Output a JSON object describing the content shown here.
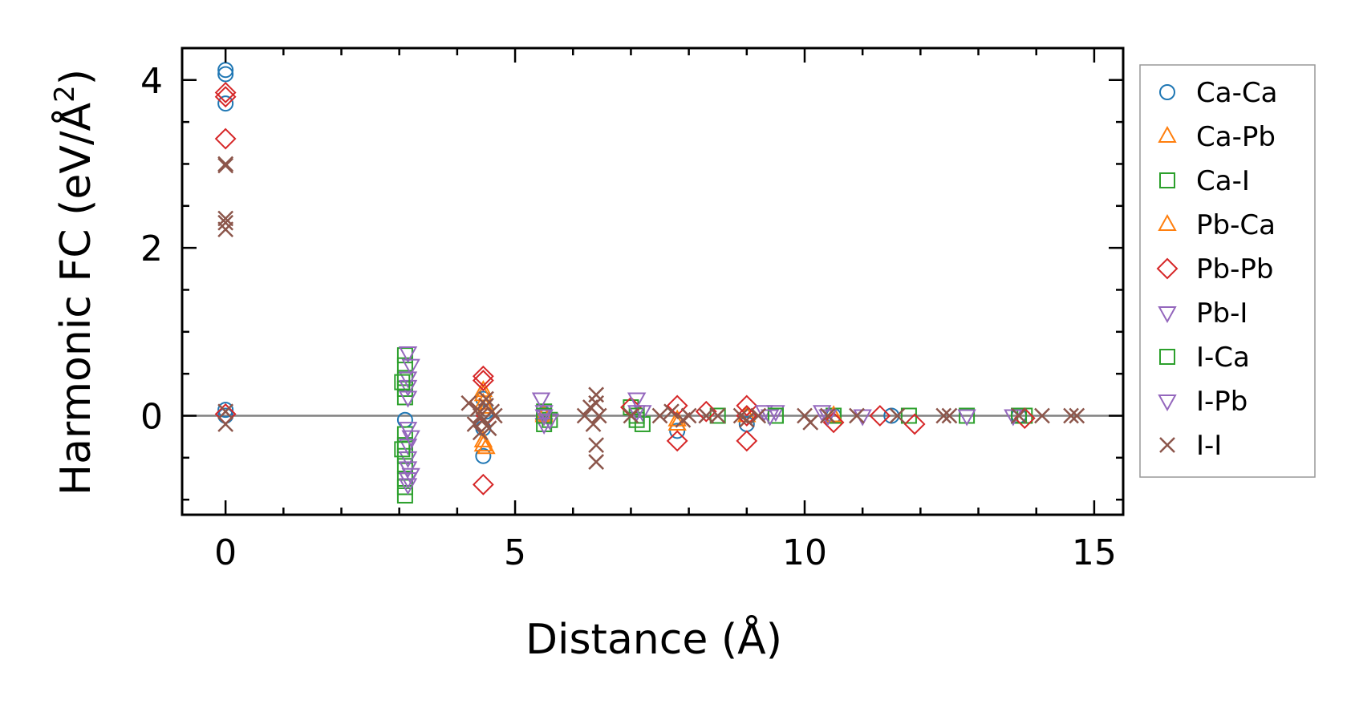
{
  "chart_data": {
    "type": "scatter",
    "xlabel": "Distance (Å)",
    "ylabel_main": "Harmonic FC (eV/Å",
    "ylabel_sup": "2",
    "ylabel_close": ")",
    "xlim": [
      -0.75,
      15.5
    ],
    "ylim": [
      -1.18,
      4.38
    ],
    "x_ticks": [
      0,
      5,
      10,
      15
    ],
    "y_ticks": [
      0,
      2,
      4
    ],
    "grid": false,
    "zero_line": true,
    "legend_position": "outside-right",
    "series": [
      {
        "name": "Ca-Ca",
        "marker": "circle",
        "color": "#1f77b4",
        "points": [
          [
            0,
            4.12
          ],
          [
            0,
            4.07
          ],
          [
            0,
            3.72
          ],
          [
            0,
            0.07
          ],
          [
            0,
            0.0
          ],
          [
            3.1,
            -0.05
          ],
          [
            4.45,
            0.2
          ],
          [
            4.45,
            -0.15
          ],
          [
            4.45,
            -0.48
          ],
          [
            4.5,
            0.05
          ],
          [
            5.5,
            0.02
          ],
          [
            7.8,
            -0.18
          ],
          [
            9.0,
            -0.1
          ],
          [
            10.5,
            0.0
          ],
          [
            11.5,
            0.0
          ],
          [
            13.7,
            0.0
          ]
        ]
      },
      {
        "name": "Ca-Pb",
        "marker": "triangle-up",
        "color": "#ff7f0e",
        "points": [
          [
            4.45,
            0.3
          ],
          [
            4.45,
            0.15
          ],
          [
            4.45,
            -0.3
          ],
          [
            4.5,
            -0.38
          ],
          [
            5.5,
            0.02
          ],
          [
            7.8,
            -0.1
          ],
          [
            9.0,
            0.0
          ],
          [
            10.5,
            0.0
          ]
        ]
      },
      {
        "name": "Ca-I",
        "marker": "square",
        "color": "#2ca02c",
        "points": [
          [
            3.1,
            0.72
          ],
          [
            3.1,
            0.6
          ],
          [
            3.1,
            0.45
          ],
          [
            3.1,
            0.32
          ],
          [
            3.1,
            0.22
          ],
          [
            3.1,
            -0.22
          ],
          [
            3.1,
            -0.35
          ],
          [
            3.1,
            -0.48
          ],
          [
            3.1,
            -0.6
          ],
          [
            3.1,
            -0.75
          ],
          [
            3.1,
            -0.85
          ],
          [
            3.1,
            -0.95
          ],
          [
            5.5,
            0.05
          ],
          [
            5.6,
            -0.05
          ],
          [
            5.5,
            -0.1
          ],
          [
            7.0,
            0.1
          ],
          [
            7.1,
            -0.05
          ],
          [
            7.2,
            -0.1
          ],
          [
            8.5,
            0.0
          ],
          [
            9.5,
            0.0
          ],
          [
            10.5,
            0.0
          ],
          [
            11.8,
            0.0
          ],
          [
            12.8,
            0.0
          ],
          [
            13.7,
            0.0
          ],
          [
            13.8,
            0.0
          ]
        ]
      },
      {
        "name": "Pb-Ca",
        "marker": "triangle-up",
        "color": "#ff7f0e",
        "points": [
          [
            4.45,
            0.25
          ],
          [
            4.45,
            -0.35
          ],
          [
            4.5,
            0.1
          ],
          [
            5.5,
            0.0
          ],
          [
            7.8,
            -0.05
          ],
          [
            9.0,
            0.0
          ],
          [
            10.5,
            0.0
          ]
        ]
      },
      {
        "name": "Pb-Pb",
        "marker": "diamond",
        "color": "#d62728",
        "points": [
          [
            0,
            3.85
          ],
          [
            0,
            3.8
          ],
          [
            0,
            3.3
          ],
          [
            0,
            0.02
          ],
          [
            4.45,
            0.47
          ],
          [
            4.45,
            0.42
          ],
          [
            4.45,
            -0.82
          ],
          [
            4.5,
            0.0
          ],
          [
            7.0,
            0.1
          ],
          [
            7.8,
            0.12
          ],
          [
            7.8,
            -0.3
          ],
          [
            8.3,
            0.05
          ],
          [
            9.0,
            0.12
          ],
          [
            9.0,
            -0.3
          ],
          [
            9.0,
            0.0
          ],
          [
            10.5,
            -0.08
          ],
          [
            11.3,
            0.0
          ],
          [
            11.9,
            -0.1
          ],
          [
            13.8,
            -0.03
          ]
        ]
      },
      {
        "name": "Pb-I",
        "marker": "triangle-down",
        "color": "#9467bd",
        "points": [
          [
            3.15,
            0.75
          ],
          [
            3.15,
            0.45
          ],
          [
            3.15,
            0.35
          ],
          [
            3.15,
            0.22
          ],
          [
            3.15,
            -0.15
          ],
          [
            3.15,
            -0.35
          ],
          [
            3.15,
            -0.5
          ],
          [
            3.15,
            -0.62
          ],
          [
            3.15,
            -0.75
          ],
          [
            3.15,
            -0.82
          ],
          [
            5.45,
            0.2
          ],
          [
            5.5,
            0.05
          ],
          [
            5.6,
            -0.05
          ],
          [
            5.5,
            -0.1
          ],
          [
            7.1,
            0.2
          ],
          [
            7.2,
            0.05
          ],
          [
            9.3,
            0.05
          ],
          [
            9.5,
            0.05
          ],
          [
            10.3,
            0.05
          ],
          [
            11.0,
            0.0
          ],
          [
            12.8,
            0.0
          ],
          [
            13.6,
            0.0
          ]
        ]
      },
      {
        "name": "I-Ca",
        "marker": "square",
        "color": "#2ca02c",
        "points": [
          [
            3.05,
            0.4
          ],
          [
            3.05,
            -0.4
          ],
          [
            5.5,
            0.0
          ],
          [
            7.1,
            0.0
          ],
          [
            9.5,
            0.0
          ]
        ]
      },
      {
        "name": "I-Pb",
        "marker": "triangle-down",
        "color": "#9467bd",
        "points": [
          [
            3.2,
            0.6
          ],
          [
            3.2,
            -0.25
          ],
          [
            3.2,
            -0.7
          ],
          [
            5.5,
            0.0
          ],
          [
            7.1,
            0.05
          ],
          [
            9.4,
            0.0
          ],
          [
            10.4,
            0.0
          ]
        ]
      },
      {
        "name": "I-I",
        "marker": "x",
        "color": "#8c564b",
        "points": [
          [
            0,
            2.98
          ],
          [
            0,
            3.0
          ],
          [
            0,
            2.35
          ],
          [
            0,
            2.3
          ],
          [
            0,
            2.22
          ],
          [
            0,
            0.05
          ],
          [
            0,
            -0.1
          ],
          [
            4.2,
            0.15
          ],
          [
            4.3,
            -0.1
          ],
          [
            4.35,
            0.08
          ],
          [
            4.4,
            0.0
          ],
          [
            4.45,
            -0.05
          ],
          [
            4.5,
            0.12
          ],
          [
            4.55,
            -0.15
          ],
          [
            4.6,
            0.05
          ],
          [
            4.65,
            0.0
          ],
          [
            4.4,
            -0.2
          ],
          [
            4.5,
            0.2
          ],
          [
            6.2,
            0.0
          ],
          [
            6.3,
            0.1
          ],
          [
            6.35,
            -0.1
          ],
          [
            6.4,
            0.25
          ],
          [
            6.4,
            0.15
          ],
          [
            6.4,
            -0.35
          ],
          [
            6.4,
            -0.55
          ],
          [
            6.45,
            0.0
          ],
          [
            7.0,
            0.0
          ],
          [
            7.5,
            0.0
          ],
          [
            7.7,
            0.05
          ],
          [
            7.9,
            -0.05
          ],
          [
            8.0,
            0.0
          ],
          [
            8.3,
            0.0
          ],
          [
            8.5,
            0.0
          ],
          [
            8.9,
            0.0
          ],
          [
            9.0,
            -0.05
          ],
          [
            9.2,
            0.0
          ],
          [
            10.0,
            0.0
          ],
          [
            10.1,
            -0.08
          ],
          [
            10.4,
            0.0
          ],
          [
            10.9,
            0.0
          ],
          [
            11.6,
            0.0
          ],
          [
            12.4,
            0.0
          ],
          [
            12.5,
            0.0
          ],
          [
            13.7,
            0.0
          ],
          [
            14.1,
            0.0
          ],
          [
            14.6,
            0.0
          ],
          [
            14.7,
            0.0
          ]
        ]
      }
    ]
  }
}
